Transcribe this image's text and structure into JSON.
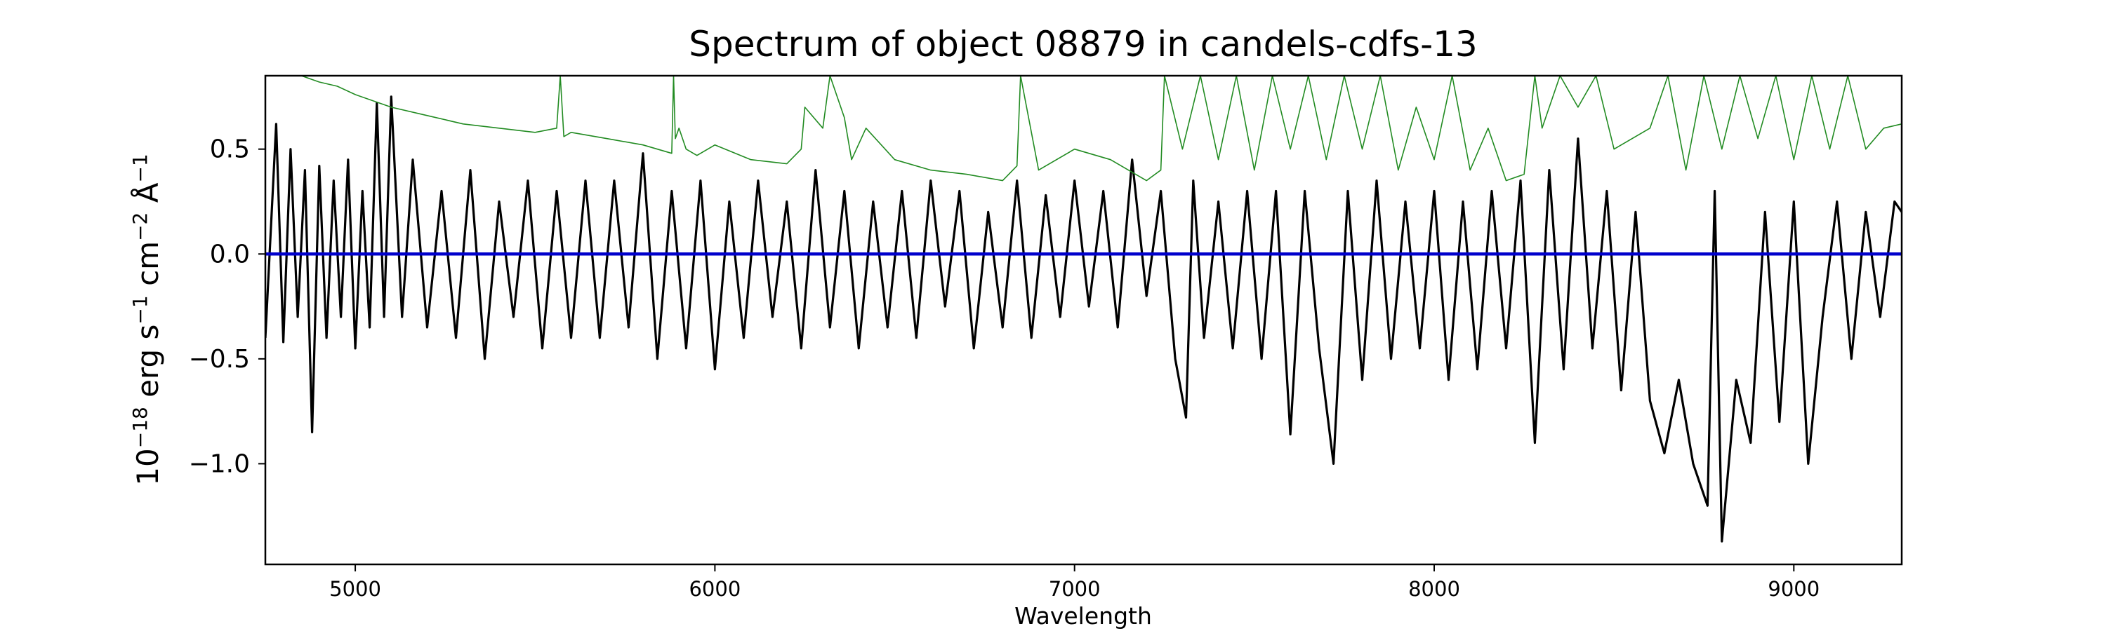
{
  "chart_data": {
    "type": "line",
    "title": "Spectrum of object 08879 in candels-cdfs-13",
    "xlabel": "Wavelength",
    "ylabel": {
      "base": "10",
      "exp": "−18",
      "unit1": " erg s",
      "exp1": "−1",
      "unit2": " cm",
      "exp2": "−2",
      "unit3": " Å",
      "exp3": "−1"
    },
    "xlim": [
      4750,
      9300
    ],
    "ylim": [
      -1.48,
      0.85
    ],
    "x_ticks": [
      5000,
      6000,
      7000,
      8000,
      9000
    ],
    "x_tick_labels": [
      "5000",
      "6000",
      "7000",
      "8000",
      "9000"
    ],
    "y_ticks": [
      0.5,
      0.0,
      -0.5,
      -1.0
    ],
    "y_tick_labels": [
      "0.5",
      "0.0",
      "−0.5",
      "−1.0"
    ],
    "grid": false,
    "series": [
      {
        "color": "#000000",
        "x": [
          4750,
          4780,
          4800,
          4820,
          4840,
          4860,
          4880,
          4900,
          4920,
          4940,
          4960,
          4980,
          5000,
          5020,
          5040,
          5060,
          5080,
          5100,
          5130,
          5160,
          5200,
          5240,
          5280,
          5320,
          5360,
          5400,
          5440,
          5480,
          5520,
          5560,
          5600,
          5640,
          5680,
          5720,
          5760,
          5800,
          5840,
          5880,
          5920,
          5960,
          6000,
          6040,
          6080,
          6120,
          6160,
          6200,
          6240,
          6280,
          6320,
          6360,
          6400,
          6440,
          6480,
          6520,
          6560,
          6600,
          6640,
          6680,
          6720,
          6760,
          6800,
          6840,
          6880,
          6920,
          6960,
          7000,
          7040,
          7080,
          7120,
          7160,
          7200,
          7240,
          7280,
          7310,
          7330,
          7360,
          7400,
          7440,
          7480,
          7520,
          7560,
          7600,
          7640,
          7680,
          7720,
          7760,
          7800,
          7840,
          7880,
          7920,
          7960,
          8000,
          8040,
          8080,
          8120,
          8160,
          8200,
          8240,
          8280,
          8320,
          8360,
          8400,
          8440,
          8480,
          8520,
          8560,
          8600,
          8640,
          8680,
          8720,
          8760,
          8780,
          8800,
          8840,
          8880,
          8920,
          8960,
          9000,
          9040,
          9080,
          9120,
          9160,
          9200,
          9240,
          9280,
          9300
        ],
        "y": [
          -0.4,
          0.62,
          -0.42,
          0.5,
          -0.3,
          0.4,
          -0.85,
          0.42,
          -0.4,
          0.35,
          -0.3,
          0.45,
          -0.45,
          0.3,
          -0.35,
          0.72,
          -0.3,
          0.75,
          -0.3,
          0.45,
          -0.35,
          0.3,
          -0.4,
          0.4,
          -0.5,
          0.25,
          -0.3,
          0.35,
          -0.45,
          0.3,
          -0.4,
          0.35,
          -0.4,
          0.35,
          -0.35,
          0.48,
          -0.5,
          0.3,
          -0.45,
          0.35,
          -0.55,
          0.25,
          -0.4,
          0.35,
          -0.3,
          0.25,
          -0.45,
          0.4,
          -0.35,
          0.3,
          -0.45,
          0.25,
          -0.35,
          0.3,
          -0.4,
          0.35,
          -0.25,
          0.3,
          -0.45,
          0.2,
          -0.35,
          0.35,
          -0.4,
          0.28,
          -0.3,
          0.35,
          -0.25,
          0.3,
          -0.35,
          0.45,
          -0.2,
          0.3,
          -0.5,
          -0.78,
          0.35,
          -0.4,
          0.25,
          -0.45,
          0.3,
          -0.5,
          0.3,
          -0.86,
          0.3,
          -0.45,
          -1.0,
          0.3,
          -0.6,
          0.35,
          -0.5,
          0.25,
          -0.45,
          0.3,
          -0.6,
          0.25,
          -0.55,
          0.3,
          -0.45,
          0.35,
          -0.9,
          0.4,
          -0.55,
          0.55,
          -0.45,
          0.3,
          -0.65,
          0.2,
          -0.7,
          -0.95,
          -0.6,
          -1.0,
          -1.2,
          0.3,
          -1.37,
          -0.6,
          -0.9,
          0.2,
          -0.8,
          0.25,
          -1.0,
          -0.3,
          0.25,
          -0.5,
          0.2,
          -0.3,
          0.25,
          0.2
        ]
      },
      {
        "color": "#0000cc",
        "x": [
          4750,
          9300
        ],
        "y": [
          0.0,
          0.0
        ]
      },
      {
        "color": "#228b22",
        "x": [
          4850,
          4900,
          4950,
          5000,
          5100,
          5200,
          5300,
          5400,
          5500,
          5560,
          5570,
          5580,
          5600,
          5700,
          5800,
          5880,
          5885,
          5890,
          5900,
          5920,
          5950,
          6000,
          6100,
          6200,
          6240,
          6250,
          6300,
          6320,
          6360,
          6380,
          6420,
          6500,
          6600,
          6700,
          6800,
          6840,
          6850,
          6900,
          7000,
          7100,
          7200,
          7240,
          7250,
          7300,
          7350,
          7400,
          7450,
          7500,
          7550,
          7600,
          7650,
          7700,
          7750,
          7800,
          7850,
          7900,
          7950,
          8000,
          8050,
          8100,
          8150,
          8200,
          8250,
          8280,
          8300,
          8350,
          8400,
          8450,
          8500,
          8600,
          8650,
          8700,
          8750,
          8800,
          8850,
          8900,
          8950,
          9000,
          9050,
          9100,
          9150,
          9200,
          9250,
          9300
        ],
        "y": [
          0.85,
          0.82,
          0.8,
          0.76,
          0.7,
          0.66,
          0.62,
          0.6,
          0.58,
          0.6,
          0.85,
          0.56,
          0.58,
          0.55,
          0.52,
          0.48,
          0.85,
          0.55,
          0.6,
          0.5,
          0.47,
          0.52,
          0.45,
          0.43,
          0.5,
          0.7,
          0.6,
          0.85,
          0.65,
          0.45,
          0.6,
          0.45,
          0.4,
          0.38,
          0.35,
          0.42,
          0.85,
          0.4,
          0.5,
          0.45,
          0.35,
          0.4,
          0.85,
          0.5,
          0.85,
          0.45,
          0.85,
          0.4,
          0.85,
          0.5,
          0.85,
          0.45,
          0.85,
          0.5,
          0.85,
          0.4,
          0.7,
          0.45,
          0.85,
          0.4,
          0.6,
          0.35,
          0.38,
          0.85,
          0.6,
          0.85,
          0.7,
          0.85,
          0.5,
          0.6,
          0.85,
          0.4,
          0.85,
          0.5,
          0.85,
          0.55,
          0.85,
          0.45,
          0.85,
          0.5,
          0.85,
          0.5,
          0.6,
          0.62
        ]
      }
    ]
  }
}
